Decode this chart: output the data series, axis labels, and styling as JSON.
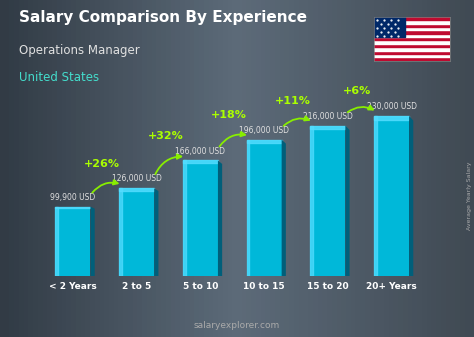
{
  "title": "Salary Comparison By Experience",
  "subtitle": "Operations Manager",
  "country": "United States",
  "watermark": "salaryexplorer.com",
  "side_label": "Average Yearly Salary",
  "categories": [
    "< 2 Years",
    "2 to 5",
    "5 to 10",
    "10 to 15",
    "15 to 20",
    "20+ Years"
  ],
  "values": [
    99900,
    126000,
    166000,
    196000,
    216000,
    230000
  ],
  "labels": [
    "99,900 USD",
    "126,000 USD",
    "166,000 USD",
    "196,000 USD",
    "216,000 USD",
    "230,000 USD"
  ],
  "pct_pairs": [
    [
      0,
      1,
      "+26%"
    ],
    [
      1,
      2,
      "+32%"
    ],
    [
      2,
      3,
      "+18%"
    ],
    [
      3,
      4,
      "+11%"
    ],
    [
      4,
      5,
      "+6%"
    ]
  ],
  "bar_main": "#00b8d9",
  "bar_light": "#55ddff",
  "bar_dark": "#007a99",
  "bar_side": "#005f7a",
  "bg_dark": "#2e3b47",
  "bg_mid": "#3a4a58",
  "title_color": "#ffffff",
  "subtitle_color": "#e0e0e0",
  "country_color": "#44ddcc",
  "label_color": "#e0e0e0",
  "pct_color": "#aaff00",
  "arrow_color": "#88ee00",
  "xtick_color": "#ffffff",
  "watermark_color": "#aaaaaa",
  "side_label_color": "#aaaaaa",
  "ylim_max": 280000,
  "bar_width": 0.55,
  "figsize": [
    4.74,
    3.37
  ],
  "dpi": 100
}
